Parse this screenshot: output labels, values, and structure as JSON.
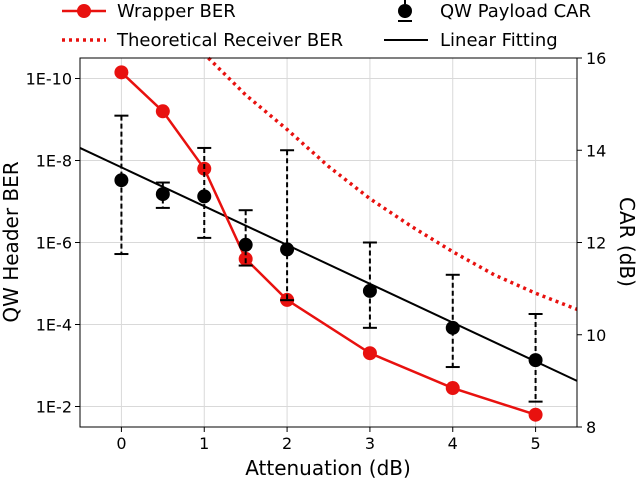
{
  "chart_data": {
    "type": "line",
    "xlabel": "Attenuation (dB)",
    "ylabel_left": "QW Header BER",
    "ylabel_right": "CAR (dB)",
    "xlim": [
      -0.5,
      5.5
    ],
    "x_ticks": [
      0,
      1,
      2,
      3,
      4,
      5
    ],
    "y_left_log10_lim": [
      -10.5,
      -1.5
    ],
    "y_left_ticks": [
      {
        "log": -10,
        "label": "1E-10"
      },
      {
        "log": -8,
        "label": "1E-8"
      },
      {
        "log": -6,
        "label": "1E-6"
      },
      {
        "log": -4,
        "label": "1E-4"
      },
      {
        "log": -2,
        "label": "1E-2"
      }
    ],
    "y_right_lim": [
      8,
      16
    ],
    "y_right_ticks": [
      8,
      10,
      12,
      14,
      16
    ],
    "grid": true,
    "legend": [
      {
        "label": "Wrapper BER",
        "style": "red-line-marker",
        "series": "wrapper_ber"
      },
      {
        "label": "QW Payload CAR",
        "style": "black-errorbar",
        "series": "qw_payload_car"
      },
      {
        "label": "Theoretical Receiver BER",
        "style": "red-dotted",
        "series": "theoretical_ber"
      },
      {
        "label": "Linear Fitting",
        "style": "black-line",
        "series": "linear_fit"
      }
    ],
    "series": {
      "wrapper_ber": {
        "name": "Wrapper BER",
        "color": "#e8110f",
        "axis": "left",
        "x": [
          0,
          0.5,
          1,
          1.5,
          2,
          3,
          4,
          5
        ],
        "log10_y": [
          -10.15,
          -9.2,
          -7.8,
          -5.6,
          -4.6,
          -3.3,
          -2.45,
          -1.8
        ]
      },
      "qw_payload_car": {
        "name": "QW Payload CAR",
        "color": "#000000",
        "axis": "right",
        "x": [
          0,
          0.5,
          1,
          1.5,
          2,
          3,
          4,
          5
        ],
        "y": [
          13.35,
          13.05,
          13.0,
          11.95,
          11.85,
          10.95,
          10.15,
          9.45
        ],
        "err_low": [
          11.75,
          12.75,
          12.1,
          11.5,
          10.75,
          10.15,
          9.3,
          8.55
        ],
        "err_high": [
          14.75,
          13.3,
          14.05,
          12.7,
          14.0,
          12.0,
          11.3,
          10.45
        ]
      },
      "theoretical_ber": {
        "name": "Theoretical Receiver BER",
        "color": "#e8110f",
        "axis": "right",
        "x": [
          1.05,
          1.5,
          2,
          2.5,
          3,
          3.5,
          4,
          4.5,
          5,
          5.5
        ],
        "y": [
          16.0,
          15.2,
          14.45,
          13.65,
          12.95,
          12.35,
          11.8,
          11.3,
          10.9,
          10.55
        ]
      },
      "linear_fit": {
        "name": "Linear Fitting",
        "color": "#000000",
        "axis": "right",
        "x": [
          -0.5,
          5.5
        ],
        "y": [
          14.05,
          9.0
        ]
      }
    }
  }
}
